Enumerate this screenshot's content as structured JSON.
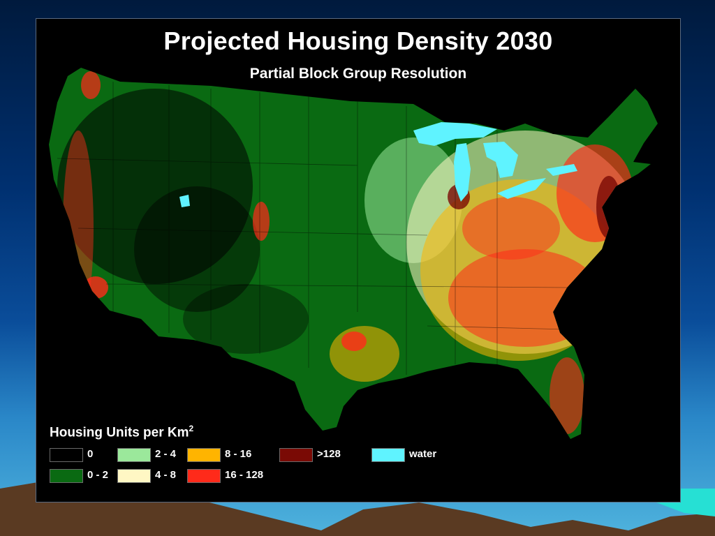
{
  "title": "Projected Housing Density 2030",
  "subtitle": "Partial Block Group Resolution",
  "legend": {
    "title": "Housing Units per Km",
    "superscript": "2",
    "items": [
      {
        "label": "0",
        "color": "#000000"
      },
      {
        "label": "0 - 2",
        "color": "#0a6a12"
      },
      {
        "label": "2 - 4",
        "color": "#9be89b"
      },
      {
        "label": "4 - 8",
        "color": "#fff7c4"
      },
      {
        "label": "8 - 16",
        "color": "#ffb400"
      },
      {
        "label": "16 - 128",
        "color": "#ff2a1a"
      },
      {
        "label": ">128",
        "color": "#7a0a05"
      },
      {
        "label": "water",
        "color": "#5ff3ff"
      }
    ]
  }
}
